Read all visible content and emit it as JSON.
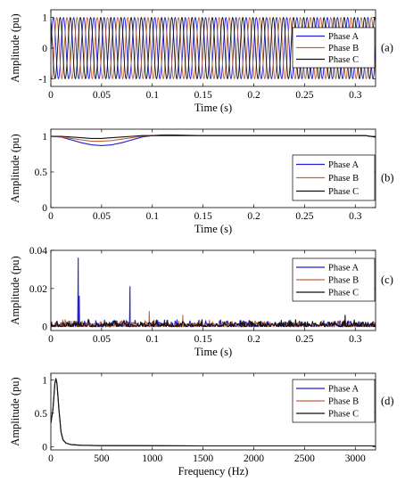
{
  "colors": {
    "phase_a": "#1f1fd6",
    "phase_b": "#c0643c",
    "phase_c": "#111111"
  },
  "chart_data": [
    {
      "type": "line",
      "panel_label": "(a)",
      "xlabel": "Time (s)",
      "ylabel": "Amplitude (pu)",
      "xlim": [
        0,
        0.32
      ],
      "ylim": [
        -1.25,
        1.25
      ],
      "xticks": [
        0,
        0.05,
        0.1,
        0.15,
        0.2,
        0.25,
        0.3
      ],
      "xtick_labels": [
        "0",
        "0.05",
        "0.1",
        "0.15",
        "0.2",
        "0.25",
        "0.3"
      ],
      "yticks": [
        -1,
        0,
        1
      ],
      "ytick_labels": [
        "-1",
        "0",
        "1"
      ],
      "grid": false,
      "legend_position": "right",
      "signal": "three-phase sinusoid, 120 degree spacing",
      "frequency_hz": 100,
      "amplitude_pu": 1,
      "phase_shift_deg": [
        0,
        -120,
        120
      ],
      "series": [
        {
          "name": "Phase A",
          "color_key": "phase_a"
        },
        {
          "name": "Phase B",
          "color_key": "phase_b"
        },
        {
          "name": "Phase C",
          "color_key": "phase_c"
        }
      ]
    },
    {
      "type": "line",
      "panel_label": "(b)",
      "xlabel": "Time (s)",
      "ylabel": "Amplitude (pu)",
      "xlim": [
        0,
        0.32
      ],
      "ylim": [
        0,
        1.1
      ],
      "xticks": [
        0,
        0.05,
        0.1,
        0.15,
        0.2,
        0.25,
        0.3
      ],
      "xtick_labels": [
        "0",
        "0.05",
        "0.1",
        "0.15",
        "0.2",
        "0.25",
        "0.3"
      ],
      "yticks": [
        0,
        0.5,
        1
      ],
      "ytick_labels": [
        "0",
        "0.5",
        "1"
      ],
      "grid": false,
      "legend_position": "bottom-right",
      "series": [
        {
          "name": "Phase A",
          "color_key": "phase_a",
          "x": [
            0,
            0.01,
            0.02,
            0.03,
            0.04,
            0.05,
            0.06,
            0.07,
            0.08,
            0.09,
            0.1,
            0.11,
            0.12,
            0.15,
            0.2,
            0.25,
            0.3,
            0.31,
            0.32
          ],
          "y": [
            1.0,
            0.99,
            0.95,
            0.91,
            0.88,
            0.87,
            0.88,
            0.91,
            0.95,
            0.99,
            1.01,
            1.02,
            1.02,
            1.01,
            1.01,
            1.01,
            1.01,
            1.01,
            0.99
          ]
        },
        {
          "name": "Phase B",
          "color_key": "phase_b",
          "x": [
            0,
            0.01,
            0.02,
            0.03,
            0.04,
            0.05,
            0.06,
            0.07,
            0.08,
            0.09,
            0.1,
            0.11,
            0.12,
            0.15,
            0.2,
            0.25,
            0.3,
            0.31,
            0.32
          ],
          "y": [
            1.0,
            0.99,
            0.97,
            0.95,
            0.93,
            0.93,
            0.94,
            0.96,
            0.98,
            1.0,
            1.01,
            1.01,
            1.01,
            1.01,
            1.01,
            1.01,
            1.01,
            1.01,
            0.99
          ]
        },
        {
          "name": "Phase C",
          "color_key": "phase_c",
          "x": [
            0,
            0.01,
            0.02,
            0.03,
            0.04,
            0.05,
            0.06,
            0.07,
            0.08,
            0.09,
            0.1,
            0.11,
            0.12,
            0.15,
            0.2,
            0.25,
            0.3,
            0.31,
            0.32
          ],
          "y": [
            1.0,
            1.0,
            0.99,
            0.98,
            0.97,
            0.97,
            0.98,
            0.99,
            1.0,
            1.01,
            1.01,
            1.01,
            1.01,
            1.01,
            1.01,
            1.01,
            1.01,
            1.01,
            0.99
          ]
        }
      ]
    },
    {
      "type": "line",
      "panel_label": "(c)",
      "xlabel": "Time (s)",
      "ylabel": "Amplitude (pu)",
      "xlim": [
        0,
        0.32
      ],
      "ylim": [
        -0.002,
        0.04
      ],
      "xticks": [
        0,
        0.05,
        0.1,
        0.15,
        0.2,
        0.25,
        0.3
      ],
      "xtick_labels": [
        "0",
        "0.05",
        "0.1",
        "0.15",
        "0.2",
        "0.25",
        "0.3"
      ],
      "yticks": [
        0,
        0.02,
        0.04
      ],
      "ytick_labels": [
        "0",
        "0.02",
        "0.04"
      ],
      "grid": false,
      "legend_position": "right",
      "noise_level": 0.004,
      "series": [
        {
          "name": "Phase A",
          "color_key": "phase_a",
          "spikes": [
            {
              "x": 0.027,
              "y": 0.036
            },
            {
              "x": 0.028,
              "y": 0.016
            },
            {
              "x": 0.078,
              "y": 0.021
            }
          ]
        },
        {
          "name": "Phase B",
          "color_key": "phase_b",
          "spikes": [
            {
              "x": 0.097,
              "y": 0.008
            },
            {
              "x": 0.13,
              "y": 0.006
            }
          ]
        },
        {
          "name": "Phase C",
          "color_key": "phase_c",
          "spikes": [
            {
              "x": 0.29,
              "y": 0.006
            }
          ]
        }
      ]
    },
    {
      "type": "line",
      "panel_label": "(d)",
      "xlabel": "Frequency (Hz)",
      "ylabel": "Amplitude (pu)",
      "xlim": [
        0,
        3200
      ],
      "ylim": [
        -0.05,
        1.1
      ],
      "xticks": [
        0,
        500,
        1000,
        1500,
        2000,
        2500,
        3000
      ],
      "xtick_labels": [
        "0",
        "500",
        "1000",
        "1500",
        "2000",
        "2500",
        "3000"
      ],
      "yticks": [
        0,
        0.5,
        1
      ],
      "ytick_labels": [
        "0",
        "0.5",
        "1"
      ],
      "grid": false,
      "legend_position": "right",
      "series": [
        {
          "name": "Phase A",
          "color_key": "phase_a",
          "x": [
            0,
            20,
            40,
            50,
            60,
            80,
            100,
            120,
            150,
            200,
            300,
            500,
            1000,
            1500,
            2000,
            2500,
            3000,
            3200
          ],
          "y": [
            0.35,
            0.55,
            0.95,
            1.02,
            0.95,
            0.55,
            0.22,
            0.1,
            0.05,
            0.03,
            0.02,
            0.015,
            0.012,
            0.01,
            0.01,
            0.01,
            0.01,
            0.01
          ]
        },
        {
          "name": "Phase B",
          "color_key": "phase_b",
          "x": [
            0,
            20,
            40,
            50,
            60,
            80,
            100,
            120,
            150,
            200,
            300,
            500,
            1000,
            1500,
            2000,
            2500,
            3000,
            3200
          ],
          "y": [
            0.35,
            0.55,
            0.95,
            1.02,
            0.95,
            0.55,
            0.22,
            0.1,
            0.05,
            0.03,
            0.02,
            0.015,
            0.012,
            0.01,
            0.01,
            0.01,
            0.01,
            0.01
          ]
        },
        {
          "name": "Phase C",
          "color_key": "phase_c",
          "x": [
            0,
            20,
            40,
            50,
            60,
            80,
            100,
            120,
            150,
            200,
            300,
            500,
            1000,
            1500,
            2000,
            2500,
            3000,
            3200
          ],
          "y": [
            0.35,
            0.55,
            0.95,
            1.02,
            0.95,
            0.55,
            0.22,
            0.1,
            0.05,
            0.03,
            0.02,
            0.015,
            0.012,
            0.01,
            0.01,
            0.01,
            0.01,
            0.01
          ]
        }
      ]
    }
  ]
}
